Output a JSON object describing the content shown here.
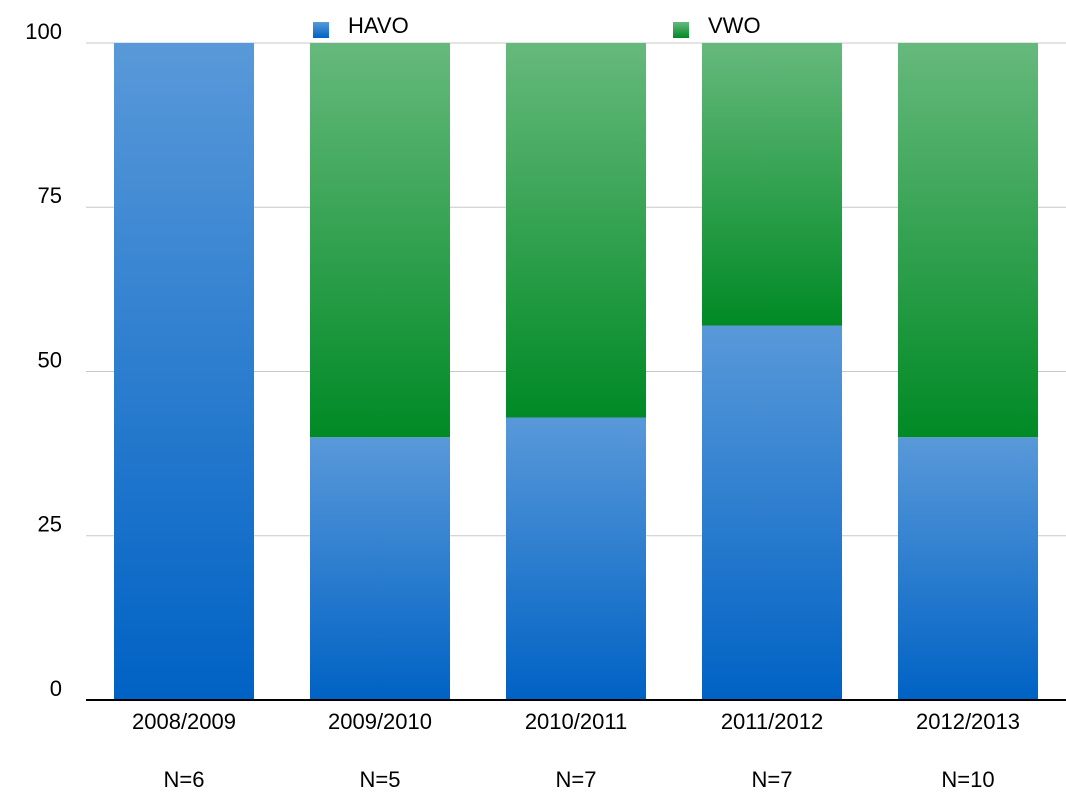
{
  "chart_data": {
    "type": "stacked_bar",
    "categories": [
      "2008/2009",
      "2009/2010",
      "2010/2011",
      "2011/2012",
      "2012/2013"
    ],
    "n_labels": [
      "N=6",
      "N=5",
      "N=7",
      "N=7",
      "N=10"
    ],
    "series": [
      {
        "name": "HAVO",
        "color": "#0062c4",
        "values": [
          100,
          40,
          43,
          57,
          40
        ]
      },
      {
        "name": "VWO",
        "color": "#008a25",
        "values": [
          0,
          60,
          57,
          43,
          60
        ]
      }
    ],
    "ylim": [
      0,
      100
    ],
    "yticks": [
      0,
      25,
      50,
      75,
      100
    ],
    "grid": true
  }
}
